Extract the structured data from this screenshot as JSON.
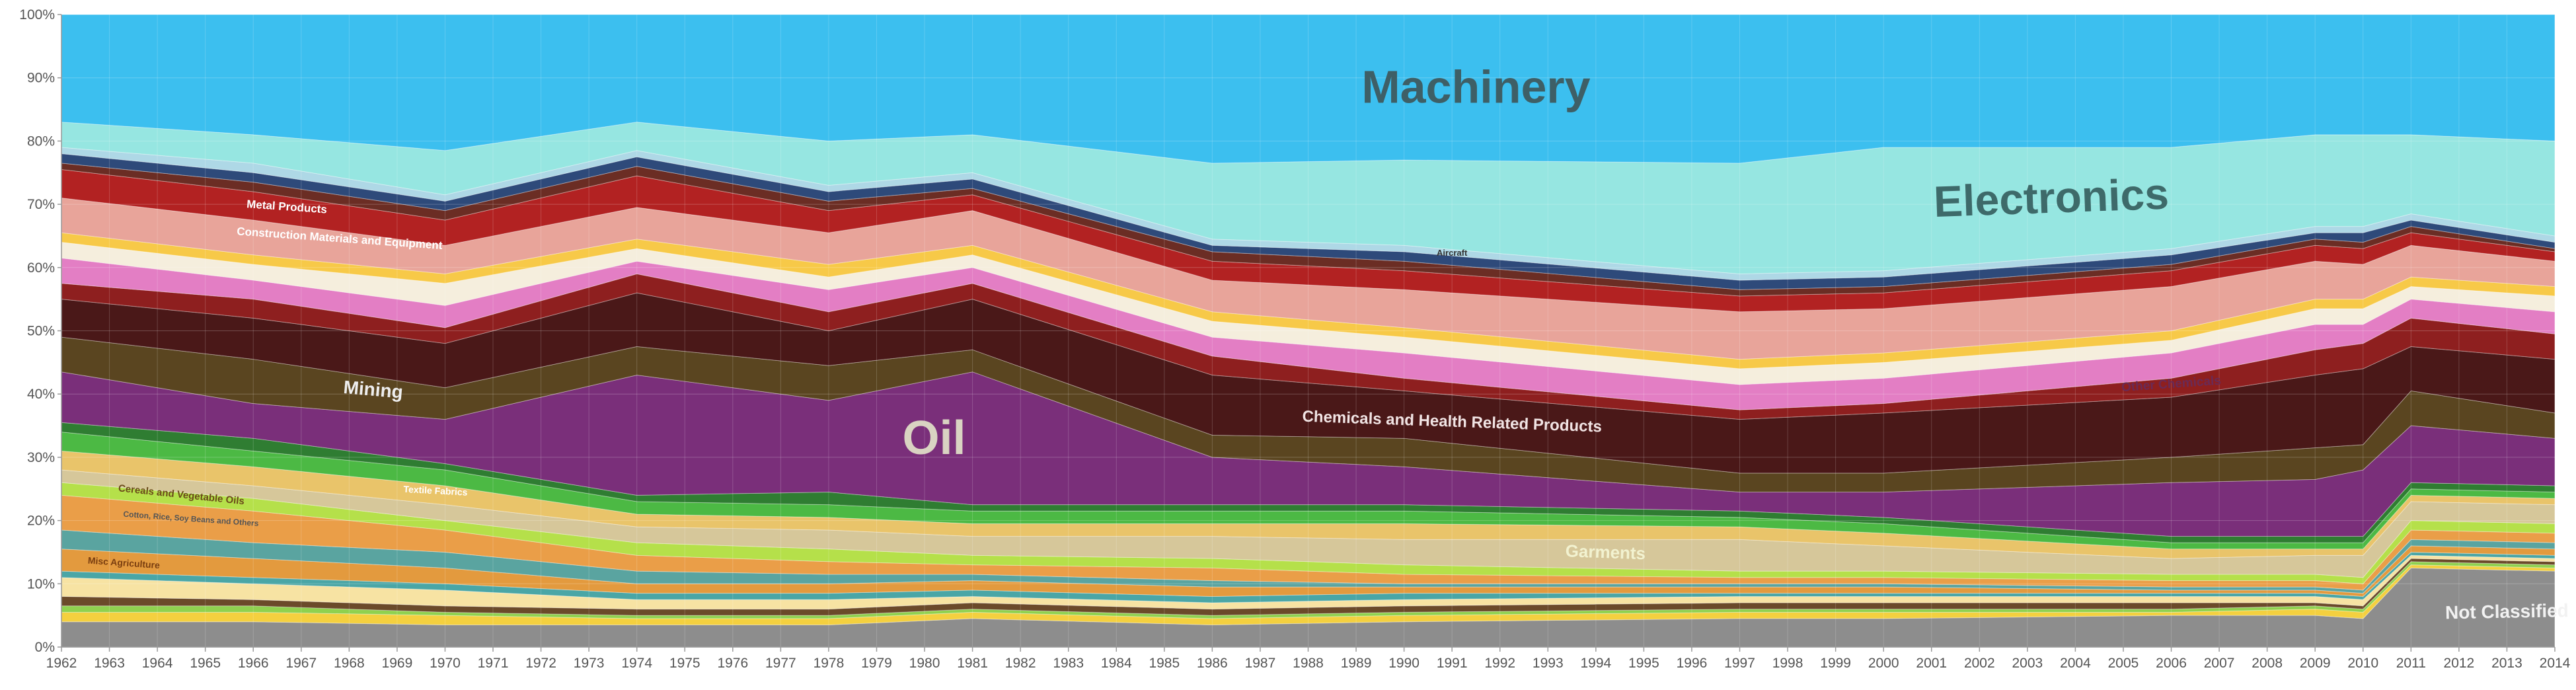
{
  "chart_data": {
    "type": "area",
    "stacked": true,
    "normalized": true,
    "title": "",
    "xlabel": "",
    "ylabel": "",
    "ylim": [
      0,
      100
    ],
    "grid": true,
    "legend": "none",
    "x": [
      1962,
      1963,
      1964,
      1965,
      1966,
      1967,
      1968,
      1969,
      1970,
      1971,
      1972,
      1973,
      1974,
      1975,
      1976,
      1977,
      1978,
      1979,
      1980,
      1981,
      1982,
      1983,
      1984,
      1985,
      1986,
      1987,
      1988,
      1989,
      1990,
      1991,
      1992,
      1993,
      1994,
      1995,
      1996,
      1997,
      1998,
      1999,
      2000,
      2001,
      2002,
      2003,
      2004,
      2005,
      2006,
      2007,
      2008,
      2009,
      2010,
      2011,
      2012,
      2013,
      2014
    ],
    "x_tick_labels": [
      "1962",
      "1963",
      "1964",
      "1965",
      "1966",
      "1967",
      "1968",
      "1969",
      "1970",
      "1971",
      "1972",
      "1973",
      "1974",
      "1975",
      "1976",
      "1977",
      "1978",
      "1979",
      "1980",
      "1981",
      "1982",
      "1983",
      "1984",
      "1985",
      "1986",
      "1987",
      "1988",
      "1989",
      "1990",
      "1991",
      "1992",
      "1993",
      "1994",
      "1995",
      "1996",
      "1997",
      "1998",
      "1999",
      "2000",
      "2001",
      "2002",
      "2003",
      "2004",
      "2005",
      "2006",
      "2007",
      "2008",
      "2009",
      "2010",
      "2011",
      "2012",
      "2013",
      "2014"
    ],
    "y_tick_labels": [
      "0%",
      "10%",
      "20%",
      "30%",
      "40%",
      "50%",
      "60%",
      "70%",
      "80%",
      "90%",
      "100%"
    ],
    "y_ticks": [
      0,
      10,
      20,
      30,
      40,
      50,
      60,
      70,
      80,
      90,
      100
    ],
    "boundary_anchors": {
      "years": [
        1962,
        1966,
        1970,
        1974,
        1978,
        1981,
        1986,
        1990,
        1997,
        2000,
        2006,
        2009,
        2010,
        2011,
        2014
      ],
      "boundaries": [
        [
          4.0,
          4.0,
          3.5,
          3.5,
          3.5,
          4.5,
          3.5,
          4.0,
          4.5,
          4.5,
          5.0,
          5.0,
          4.5,
          12.5,
          12.0
        ],
        [
          5.5,
          5.5,
          5.0,
          4.5,
          4.5,
          5.5,
          4.5,
          5.0,
          5.5,
          5.5,
          5.5,
          6.0,
          5.5,
          13.0,
          12.5
        ],
        [
          6.5,
          6.5,
          5.5,
          5.0,
          5.0,
          6.0,
          5.0,
          5.5,
          6.0,
          6.0,
          6.0,
          6.5,
          6.0,
          13.5,
          13.0
        ],
        [
          8.0,
          7.5,
          6.5,
          6.0,
          6.0,
          7.0,
          6.0,
          6.5,
          7.0,
          7.0,
          7.0,
          7.0,
          6.5,
          14.0,
          13.5
        ],
        [
          11.0,
          10.0,
          9.0,
          7.5,
          7.5,
          8.0,
          7.0,
          7.5,
          8.0,
          8.0,
          8.0,
          8.0,
          7.5,
          14.5,
          14.0
        ],
        [
          12.0,
          11.0,
          10.0,
          8.5,
          8.5,
          9.0,
          8.0,
          8.5,
          8.5,
          8.5,
          8.5,
          8.5,
          8.0,
          15.0,
          14.5
        ],
        [
          15.5,
          14.0,
          12.5,
          10.0,
          10.0,
          10.5,
          9.5,
          9.5,
          9.5,
          9.5,
          9.0,
          9.0,
          8.5,
          16.0,
          15.5
        ],
        [
          18.5,
          16.5,
          15.0,
          12.0,
          11.5,
          11.5,
          10.5,
          10.0,
          10.0,
          10.0,
          9.5,
          9.5,
          9.0,
          17.0,
          16.5
        ],
        [
          24.0,
          21.5,
          18.5,
          14.5,
          13.5,
          13.0,
          12.5,
          11.5,
          11.0,
          11.0,
          10.5,
          10.5,
          10.0,
          18.5,
          18.0
        ],
        [
          26.0,
          23.5,
          20.0,
          16.5,
          15.5,
          14.5,
          14.0,
          13.0,
          12.0,
          12.0,
          11.5,
          11.5,
          11.0,
          20.0,
          19.5
        ],
        [
          28.0,
          25.5,
          22.5,
          19.0,
          18.5,
          17.5,
          17.5,
          17.0,
          17.0,
          16.0,
          14.0,
          14.5,
          14.5,
          23.0,
          22.5
        ],
        [
          31.0,
          28.5,
          25.5,
          21.0,
          20.5,
          19.5,
          19.5,
          19.5,
          19.0,
          18.0,
          15.5,
          15.5,
          15.5,
          24.0,
          23.5
        ],
        [
          34.0,
          31.0,
          28.0,
          23.0,
          22.5,
          21.5,
          21.5,
          21.5,
          20.5,
          19.5,
          16.5,
          16.5,
          16.5,
          25.0,
          24.5
        ],
        [
          35.5,
          33.0,
          29.0,
          24.0,
          24.5,
          22.5,
          22.5,
          22.5,
          21.5,
          20.5,
          17.5,
          17.5,
          17.5,
          26.0,
          25.5
        ],
        [
          43.5,
          38.5,
          36.0,
          43.0,
          39.0,
          43.5,
          30.0,
          28.5,
          24.5,
          24.5,
          26.0,
          26.5,
          28.0,
          35.0,
          33.0
        ],
        [
          49.0,
          45.5,
          41.0,
          47.5,
          44.5,
          47.0,
          33.5,
          33.0,
          27.5,
          27.5,
          30.0,
          31.5,
          32.0,
          40.5,
          37.0
        ],
        [
          55.0,
          52.0,
          48.0,
          56.0,
          50.0,
          55.0,
          43.0,
          40.5,
          36.0,
          37.0,
          39.5,
          43.0,
          44.0,
          47.5,
          45.5
        ],
        [
          57.5,
          55.0,
          50.5,
          59.0,
          53.0,
          57.5,
          46.0,
          42.5,
          37.5,
          38.5,
          42.5,
          47.0,
          48.0,
          52.0,
          49.5
        ],
        [
          61.5,
          58.0,
          54.0,
          61.0,
          56.5,
          60.0,
          49.0,
          46.5,
          41.5,
          42.5,
          46.5,
          51.0,
          51.0,
          55.0,
          53.0
        ],
        [
          64.0,
          60.5,
          57.5,
          63.0,
          58.5,
          62.0,
          51.5,
          49.0,
          44.0,
          45.0,
          48.5,
          53.5,
          53.5,
          57.0,
          55.5
        ],
        [
          65.5,
          62.0,
          59.0,
          64.5,
          60.5,
          63.5,
          53.0,
          50.5,
          45.5,
          46.5,
          50.0,
          55.0,
          55.0,
          58.5,
          57.0
        ],
        [
          71.0,
          67.5,
          63.5,
          69.5,
          65.5,
          69.0,
          58.0,
          56.5,
          53.0,
          53.5,
          57.0,
          61.0,
          60.5,
          63.5,
          61.0
        ],
        [
          75.5,
          72.0,
          67.5,
          74.5,
          69.0,
          71.5,
          61.0,
          59.5,
          55.5,
          56.0,
          59.5,
          63.5,
          63.0,
          65.5,
          62.5
        ],
        [
          76.5,
          73.5,
          69.0,
          76.0,
          70.5,
          72.5,
          62.5,
          61.0,
          56.5,
          57.0,
          60.5,
          64.5,
          64.0,
          66.5,
          63.0
        ],
        [
          78.0,
          75.0,
          70.5,
          77.5,
          72.0,
          74.0,
          63.5,
          62.5,
          58.0,
          58.5,
          62.0,
          65.5,
          65.5,
          67.5,
          64.0
        ],
        [
          79.0,
          76.5,
          71.5,
          78.5,
          73.0,
          75.0,
          64.5,
          63.5,
          59.0,
          59.5,
          63.0,
          66.5,
          66.5,
          68.5,
          65.0
        ],
        [
          83.0,
          81.0,
          78.5,
          83.0,
          80.0,
          81.0,
          76.5,
          77.0,
          76.5,
          79.0,
          79.0,
          81.0,
          81.0,
          81.0,
          80.0
        ],
        [
          100,
          100,
          100,
          100,
          100,
          100,
          100,
          100,
          100,
          100,
          100,
          100,
          100,
          100,
          100
        ]
      ]
    },
    "series": [
      {
        "name": "Not Classified",
        "color": "#8d8d8d"
      },
      {
        "name": "",
        "color": "#f4d03f"
      },
      {
        "name": "",
        "color": "#8fd14f"
      },
      {
        "name": "",
        "color": "#6b4a2a"
      },
      {
        "name": "",
        "color": "#f7e3a3"
      },
      {
        "name": "",
        "color": "#4aa6a6"
      },
      {
        "name": "",
        "color": "#e39a3e"
      },
      {
        "name": "",
        "color": "#5aa4a0"
      },
      {
        "name": "Misc Agriculture",
        "color": "#ea9e48"
      },
      {
        "name": "",
        "color": "#b5e04a"
      },
      {
        "name": "Cotton, Rice, Soy Beans and Others",
        "color": "#d6c79a"
      },
      {
        "name": "Cereals and Vegetable Oils",
        "color": "#e9c46a"
      },
      {
        "name": "Garments",
        "color": "#4cb944"
      },
      {
        "name": "Textile Fabrics",
        "color": "#2f7d32"
      },
      {
        "name": "",
        "color": "#7a2f7a"
      },
      {
        "name": "Oil",
        "color": "#5a4520"
      },
      {
        "name": "Mining",
        "color": "#4a1818"
      },
      {
        "name": "Chemicals and Health Related Products",
        "color": "#8e1f1f"
      },
      {
        "name": "Other Chemicals",
        "color": "#e37ec4"
      },
      {
        "name": "",
        "color": "#f5eedd"
      },
      {
        "name": "",
        "color": "#f7c948"
      },
      {
        "name": "",
        "color": "#e8a49a"
      },
      {
        "name": "Construction Materials and Equipment",
        "color": "#b22222"
      },
      {
        "name": "Metal Products",
        "color": "#6b2d24"
      },
      {
        "name": "",
        "color": "#2e4a7a"
      },
      {
        "name": "Aircraft",
        "color": "#aed8e6"
      },
      {
        "name": "Electronics",
        "color": "#96e6e1"
      },
      {
        "name": "Machinery",
        "color": "#3cbfef"
      }
    ],
    "annotations": [
      {
        "text": "Machinery",
        "year": 1991.5,
        "y": 88,
        "size": 70,
        "color": "#3e5f66",
        "rotate": 0
      },
      {
        "text": "Electronics",
        "year": 2003.5,
        "y": 70.5,
        "size": 66,
        "color": "#3e6a6a",
        "rotate": -2
      },
      {
        "text": "Oil",
        "year": 1980.2,
        "y": 32.5,
        "size": 72,
        "color": "#d9d3c2",
        "rotate": 0
      },
      {
        "text": "Mining",
        "year": 1968.5,
        "y": 40.5,
        "size": 28,
        "color": "#eeeeee",
        "rotate": 5
      },
      {
        "text": "Metal Products",
        "year": 1966.7,
        "y": 69.5,
        "size": 17,
        "color": "#ffffff",
        "rotate": 4
      },
      {
        "text": "Construction Materials and Equipment",
        "year": 1967.8,
        "y": 64.5,
        "size": 17,
        "color": "#ffffff",
        "rotate": 4
      },
      {
        "text": "Chemicals and Health Related Products",
        "year": 1991,
        "y": 35.5,
        "size": 24,
        "color": "#f1e4e4",
        "rotate": 2
      },
      {
        "text": "Other Chemicals",
        "year": 2006,
        "y": 41.5,
        "size": 19,
        "color": "#6a2a55",
        "rotate": -4
      },
      {
        "text": "Aircraft",
        "year": 1991,
        "y": 62.2,
        "size": 13,
        "color": "#333333",
        "rotate": 0
      },
      {
        "text": "Garments",
        "year": 1994.2,
        "y": 14.8,
        "size": 26,
        "color": "#f2f2d0",
        "rotate": 2
      },
      {
        "text": "Textile Fabrics",
        "year": 1969.8,
        "y": 24.6,
        "size": 14,
        "color": "#ffffff",
        "rotate": 3
      },
      {
        "text": "Cereals and Vegetable Oils",
        "year": 1964.5,
        "y": 24.0,
        "size": 15,
        "color": "#6b4a1a",
        "rotate": 6
      },
      {
        "text": "Cotton, Rice, Soy Beans and Others",
        "year": 1964.7,
        "y": 20.2,
        "size": 12,
        "color": "#555555",
        "rotate": 4
      },
      {
        "text": "Misc Agriculture",
        "year": 1963.3,
        "y": 13.2,
        "size": 14,
        "color": "#7a3e10",
        "rotate": 4
      },
      {
        "text": "Not Classified",
        "year": 2013,
        "y": 5.4,
        "size": 28,
        "color": "#f2f2f2",
        "rotate": -1
      }
    ]
  }
}
